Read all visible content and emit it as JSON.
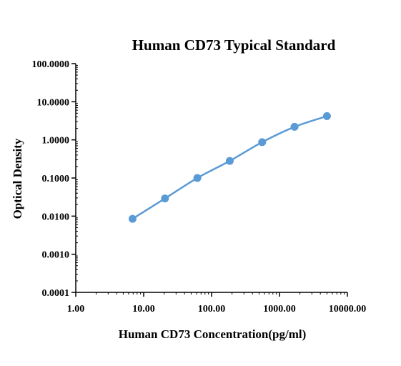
{
  "chart_data": {
    "type": "line",
    "title": "Human CD73  Typical Standard",
    "xlabel": "Human CD73 Concentration(pg/ml)",
    "ylabel": "Optical Density",
    "x_scale": "log",
    "y_scale": "log",
    "xlim": [
      1,
      10000
    ],
    "ylim": [
      0.0001,
      100
    ],
    "x_ticks": [
      {
        "value": 1,
        "label": "1.00"
      },
      {
        "value": 10,
        "label": "10.00"
      },
      {
        "value": 100,
        "label": "100.00"
      },
      {
        "value": 1000,
        "label": "1000.00"
      },
      {
        "value": 10000,
        "label": "10000.00"
      }
    ],
    "y_ticks": [
      {
        "value": 0.0001,
        "label": "0.0001"
      },
      {
        "value": 0.001,
        "label": "0.0010"
      },
      {
        "value": 0.01,
        "label": "0.0100"
      },
      {
        "value": 0.1,
        "label": "0.1000"
      },
      {
        "value": 1,
        "label": "1.0000"
      },
      {
        "value": 10,
        "label": "10.0000"
      },
      {
        "value": 100,
        "label": "100.0000"
      }
    ],
    "grid": false,
    "series": [
      {
        "color": "#5b9bd5",
        "x": [
          6.86,
          20.58,
          61.73,
          185.2,
          555.6,
          1666.7,
          5000
        ],
        "y": [
          0.0085,
          0.029,
          0.1,
          0.28,
          0.87,
          2.2,
          4.2
        ]
      }
    ]
  }
}
